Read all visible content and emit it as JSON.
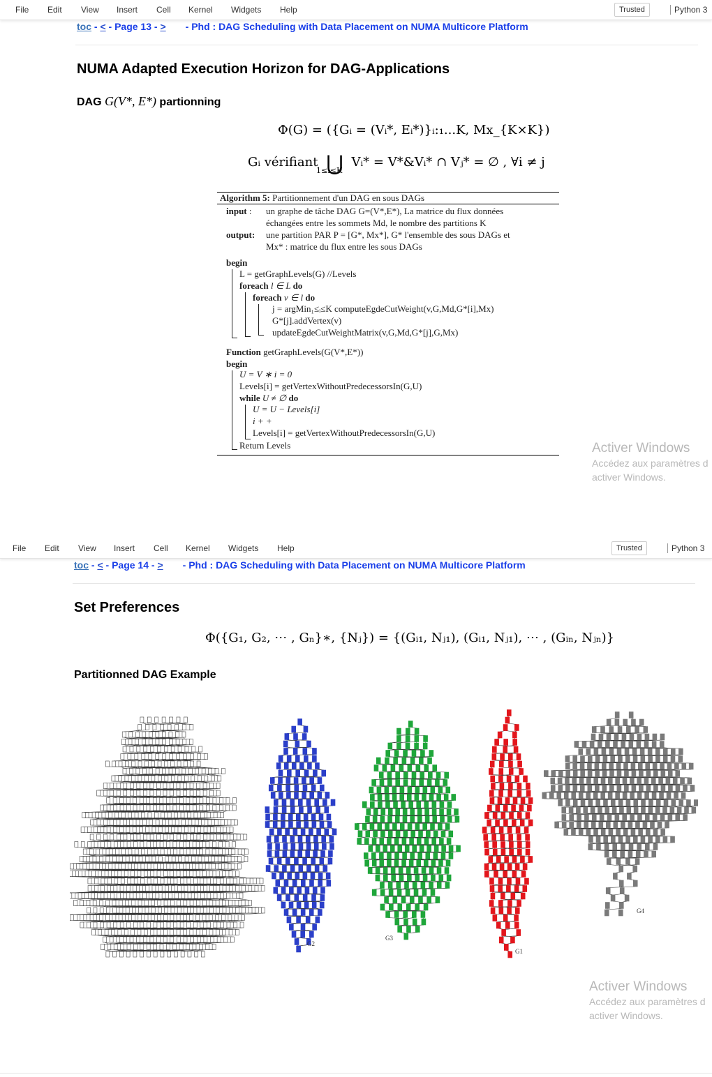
{
  "menu": [
    "File",
    "Edit",
    "View",
    "Insert",
    "Cell",
    "Kernel",
    "Widgets",
    "Help"
  ],
  "trusted": "Trusted",
  "kernel": "Python 3",
  "page13": {
    "nav": {
      "toc": "toc",
      "sep1": " - ",
      "prev": "<",
      "page": " - Page 13 - ",
      "next": ">",
      "title": "- Phd : DAG Scheduling with Data Placement on NUMA Multicore Platform"
    },
    "heading": "NUMA Adapted Execution Horizon for DAG-Applications",
    "subheading_prefix": "DAG ",
    "subheading_math": "G(V*, E*)",
    "subheading_suffix": " partionning",
    "eq1": "Φ(G) = ({Gᵢ = (Vᵢ*, Eᵢ*)}ᵢ:₁...K, Mx_{K×K})",
    "eq2_left": "Gᵢ vérifiant",
    "eq2_union": "⋃",
    "eq2_under": "1≤i≤K",
    "eq2_right": "Vᵢ* = V*&Vᵢ* ∩ Vⱼ* = ∅ , ∀i ≠ j",
    "algorithm": {
      "caption_bold": "Algorithm 5:",
      "caption": " Partitionnement d'un DAG en sous DAGs",
      "input_label": "input",
      "input_1": "un graphe de tâche DAG G=(V*,E*), La matrice du flux données",
      "input_2": "échangées entre les sommets Md, le nombre des partitions K",
      "output_label": "output:",
      "output_1": "une partition PAR P = [G*, Mx*], G* l'ensemble des sous DAGs et",
      "output_2": "Mx* : matrice du flux entre les sous DAGs",
      "begin1": "begin",
      "l1": "L = getGraphLevels(G) //Levels",
      "l2_kw": "foreach",
      "l2": " l ∈ L ",
      "l2_do": "do",
      "l3_kw": "foreach",
      "l3": " v ∈ l ",
      "l3_do": "do",
      "l4": "j = argMin₁≤ᵢ≤K computeEgdeCutWeight(v,G,Md,G*[i],Mx)",
      "l5": "G*[j].addVertex(v)",
      "l6": "updateEgdeCutWeightMatrix(v,G,Md,G*[j],G,Mx)",
      "function_kw": "Function",
      "function": "  getGraphLevels(G(V*,E*))",
      "begin2": "begin",
      "m1": "U = V ∗ i = 0",
      "m2": "Levels[i] = getVertexWithoutPredecessorsIn(G,U)",
      "m3_kw": "while",
      "m3": "  U ≠ ∅ ",
      "m3_do": "do",
      "m4": "U = U − Levels[i]",
      "m5": "i + +",
      "m6": "Levels[i] = getVertexWithoutPredecessorsIn(G,U)",
      "m7": "Return Levels"
    }
  },
  "page14": {
    "nav": {
      "toc": "toc",
      "sep1": " - ",
      "prev": "<",
      "page": " - Page 14 - ",
      "next": ">",
      "title": "- Phd : DAG Scheduling with Data Placement on NUMA Multicore Platform"
    },
    "heading": "Set Preferences",
    "eq": "Φ({G₁, G₂, ⋯ , Gₙ}∗, {Nⱼ}) = {(Gᵢ₁, Nⱼ₁), (Gᵢ₁, Nⱼ₁), ⋯ , (Gᵢₙ, Nⱼₙ)}",
    "subheading": "Partitionned DAG Example",
    "dag_labels": [
      "G2",
      "G3",
      "G1",
      "G4"
    ],
    "colors": {
      "full": "#444444",
      "g2": "#2b3fc9",
      "g3": "#1fa63a",
      "g1": "#e3161c",
      "g4": "#7a7a7a"
    }
  },
  "watermark": {
    "title": "Activer Windows",
    "line1": "Accédez aux paramètres d",
    "line2": "activer Windows."
  }
}
